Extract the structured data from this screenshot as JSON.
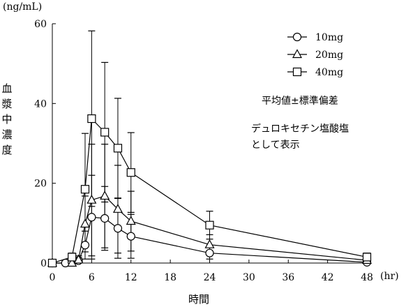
{
  "chart_data": {
    "type": "line",
    "title": "",
    "ylabel": "血漿中濃度",
    "y_unit": "(ng/mL)",
    "xlabel": "時間",
    "x_unit": "(hr)",
    "xlim": [
      0,
      48
    ],
    "ylim": [
      0,
      60
    ],
    "x_ticks": [
      0,
      6,
      12,
      18,
      24,
      30,
      36,
      42,
      48
    ],
    "y_ticks": [
      0,
      20,
      40,
      60
    ],
    "grid": false,
    "legend_position": "top-right",
    "annotations": [
      "平均値±標準偏差",
      "デュロキセチン塩酸塩",
      "として表示"
    ],
    "x": [
      0,
      2,
      3,
      4,
      5,
      6,
      8,
      10,
      12,
      24,
      48
    ],
    "series": [
      {
        "name": "10mg",
        "marker": "circle",
        "x": [
          0,
          2,
          3,
          4,
          5,
          6,
          8,
          10,
          12,
          24,
          48
        ],
        "values": [
          0,
          0,
          0.2,
          0.6,
          4.5,
          11.5,
          11.2,
          8.7,
          6.7,
          2.5,
          0.2
        ],
        "sd": [
          0,
          0,
          0.3,
          0.8,
          3.5,
          10.5,
          8.0,
          7.5,
          5.5,
          1.5,
          0.3
        ]
      },
      {
        "name": "20mg",
        "marker": "triangle",
        "x": [
          0,
          3,
          4,
          5,
          6,
          8,
          10,
          12,
          24,
          48
        ],
        "values": [
          0,
          0,
          0.8,
          9.8,
          15.8,
          16.8,
          13.5,
          10.5,
          4.6,
          0.7
        ],
        "sd": [
          0,
          0,
          1.0,
          7.0,
          14.0,
          13.0,
          11.0,
          7.5,
          2.5,
          0.6
        ]
      },
      {
        "name": "40mg",
        "marker": "square",
        "x": [
          0,
          3,
          5,
          6,
          8,
          10,
          12,
          24,
          48
        ],
        "values": [
          0,
          1.5,
          18.5,
          36.2,
          32.8,
          28.8,
          22.7,
          9.5,
          1.5
        ],
        "sd": [
          0,
          1.0,
          14.0,
          22.0,
          17.5,
          12.5,
          10.0,
          3.5,
          1.0
        ]
      }
    ]
  }
}
